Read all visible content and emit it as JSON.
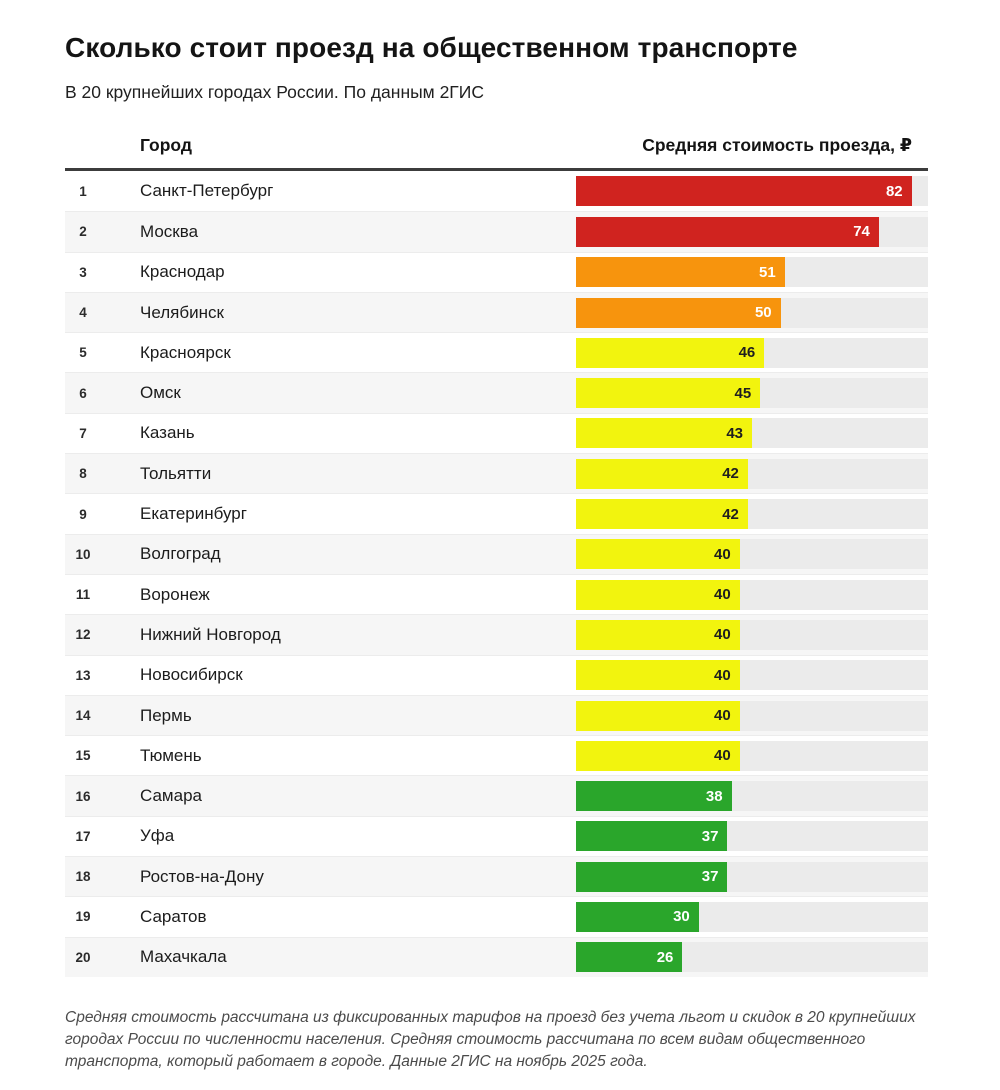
{
  "header": {
    "title": "Сколько стоит проезд на общественном транспорте",
    "subtitle": "В 20 крупнейших городах России. По данным 2ГИС"
  },
  "table": {
    "col_city": "Город",
    "col_value": "Средняя стоимость проезда, ₽"
  },
  "footnote": "Средняя стоимость рассчитана из фиксированных тарифов на проезд без учета льгот и скидок в 20 крупнейших городах России по численности населения. Средняя стоимость рассчитана по всем видам общественного транспорта, который работает в городе. Данные 2ГИС на ноябрь 2025 года.",
  "colors": {
    "red": "#d0231f",
    "orange": "#f7940d",
    "yellow": "#f2f40e",
    "green": "#2aa62b",
    "track": "#ebebeb",
    "alt_row": "#f6f6f6",
    "header_rule": "#3c3c3c"
  },
  "chart_data": {
    "type": "bar",
    "orientation": "horizontal",
    "title": "Сколько стоит проезд на общественном транспорте",
    "subtitle": "В 20 крупнейших городах России. По данным 2ГИС",
    "xlabel": "Средняя стоимость проезда, ₽",
    "ylabel": "Город",
    "xlim": [
      0,
      86
    ],
    "grid": false,
    "legend": false,
    "categories": [
      "Санкт-Петербург",
      "Москва",
      "Краснодар",
      "Челябинск",
      "Красноярск",
      "Омск",
      "Казань",
      "Тольятти",
      "Екатеринбург",
      "Волгоград",
      "Воронеж",
      "Нижний Новгород",
      "Новосибирск",
      "Пермь",
      "Тюмень",
      "Самара",
      "Уфа",
      "Ростов-на-Дону",
      "Саратов",
      "Махачкала"
    ],
    "values": [
      82,
      74,
      51,
      50,
      46,
      45,
      43,
      42,
      42,
      40,
      40,
      40,
      40,
      40,
      40,
      38,
      37,
      37,
      30,
      26
    ],
    "rows": [
      {
        "rank": 1,
        "city": "Санкт-Петербург",
        "value": 82,
        "bar_color": "#d0231f",
        "value_color": "#ffffff"
      },
      {
        "rank": 2,
        "city": "Москва",
        "value": 74,
        "bar_color": "#d0231f",
        "value_color": "#ffffff"
      },
      {
        "rank": 3,
        "city": "Краснодар",
        "value": 51,
        "bar_color": "#f7940d",
        "value_color": "#ffffff"
      },
      {
        "rank": 4,
        "city": "Челябинск",
        "value": 50,
        "bar_color": "#f7940d",
        "value_color": "#ffffff"
      },
      {
        "rank": 5,
        "city": "Красноярск",
        "value": 46,
        "bar_color": "#f2f40e",
        "value_color": "#1f1f1f"
      },
      {
        "rank": 6,
        "city": "Омск",
        "value": 45,
        "bar_color": "#f2f40e",
        "value_color": "#1f1f1f"
      },
      {
        "rank": 7,
        "city": "Казань",
        "value": 43,
        "bar_color": "#f2f40e",
        "value_color": "#1f1f1f"
      },
      {
        "rank": 8,
        "city": "Тольятти",
        "value": 42,
        "bar_color": "#f2f40e",
        "value_color": "#1f1f1f"
      },
      {
        "rank": 9,
        "city": "Екатеринбург",
        "value": 42,
        "bar_color": "#f2f40e",
        "value_color": "#1f1f1f"
      },
      {
        "rank": 10,
        "city": "Волгоград",
        "value": 40,
        "bar_color": "#f2f40e",
        "value_color": "#1f1f1f"
      },
      {
        "rank": 11,
        "city": "Воронеж",
        "value": 40,
        "bar_color": "#f2f40e",
        "value_color": "#1f1f1f"
      },
      {
        "rank": 12,
        "city": "Нижний Новгород",
        "value": 40,
        "bar_color": "#f2f40e",
        "value_color": "#1f1f1f"
      },
      {
        "rank": 13,
        "city": "Новосибирск",
        "value": 40,
        "bar_color": "#f2f40e",
        "value_color": "#1f1f1f"
      },
      {
        "rank": 14,
        "city": "Пермь",
        "value": 40,
        "bar_color": "#f2f40e",
        "value_color": "#1f1f1f"
      },
      {
        "rank": 15,
        "city": "Тюмень",
        "value": 40,
        "bar_color": "#f2f40e",
        "value_color": "#1f1f1f"
      },
      {
        "rank": 16,
        "city": "Самара",
        "value": 38,
        "bar_color": "#2aa62b",
        "value_color": "#ffffff"
      },
      {
        "rank": 17,
        "city": "Уфа",
        "value": 37,
        "bar_color": "#2aa62b",
        "value_color": "#ffffff"
      },
      {
        "rank": 18,
        "city": "Ростов-на-Дону",
        "value": 37,
        "bar_color": "#2aa62b",
        "value_color": "#ffffff"
      },
      {
        "rank": 19,
        "city": "Саратов",
        "value": 30,
        "bar_color": "#2aa62b",
        "value_color": "#ffffff"
      },
      {
        "rank": 20,
        "city": "Махачкала",
        "value": 26,
        "bar_color": "#2aa62b",
        "value_color": "#ffffff"
      }
    ]
  }
}
